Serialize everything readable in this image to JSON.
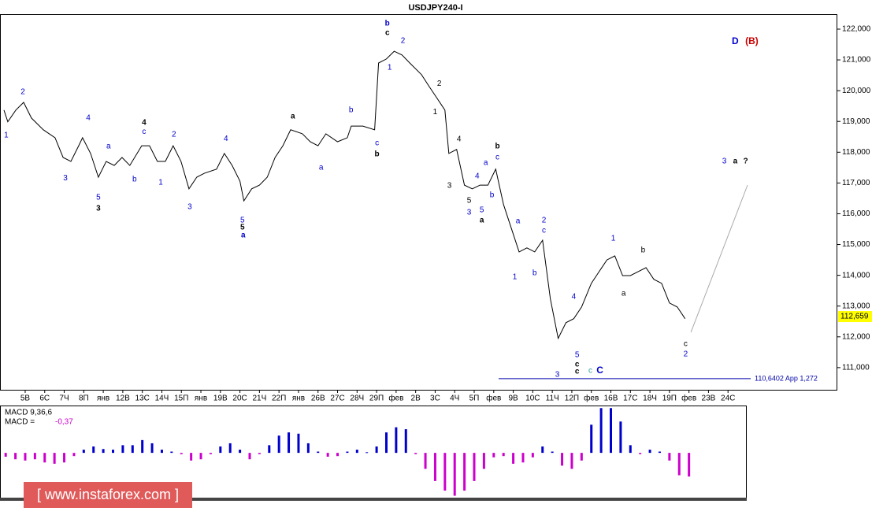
{
  "chart_data": [
    {
      "type": "line",
      "title": "USDJPY240-I",
      "color": "#000000",
      "x": [
        -1.09,
        -0.89,
        -0.48,
        -0.08,
        0.32,
        0.93,
        1.53,
        1.94,
        2.34,
        2.74,
        2.94,
        3.35,
        3.75,
        4.15,
        4.56,
        4.96,
        5.36,
        5.97,
        6.37,
        6.77,
        7.18,
        7.58,
        7.98,
        8.39,
        8.79,
        9.19,
        9.8,
        10.2,
        10.6,
        11.0,
        11.2,
        11.6,
        12.0,
        12.4,
        12.8,
        13.2,
        13.6,
        14.2,
        14.6,
        15.0,
        15.4,
        16.0,
        16.5,
        16.7,
        17.3,
        17.9,
        18.1,
        18.5,
        18.9,
        19.3,
        19.7,
        20.3,
        20.7,
        21.1,
        21.5,
        21.7,
        22.1,
        22.5,
        22.9,
        23.3,
        23.7,
        24.1,
        24.5,
        24.9,
        25.3,
        25.7,
        26.1,
        26.5,
        26.9,
        27.3,
        27.7,
        28.1,
        28.5,
        29.0,
        29.4,
        29.8,
        30.2,
        30.6,
        31.0,
        31.4,
        31.8,
        32.2,
        32.6,
        33.0,
        33.4,
        33.8
      ],
      "values": [
        119.37,
        118.99,
        119.37,
        119.62,
        119.11,
        118.73,
        118.47,
        117.83,
        117.7,
        118.21,
        118.47,
        117.96,
        117.19,
        117.7,
        117.57,
        117.83,
        117.57,
        118.21,
        118.21,
        117.7,
        117.7,
        118.21,
        117.7,
        116.81,
        117.19,
        117.32,
        117.45,
        117.96,
        117.57,
        117.06,
        116.42,
        116.81,
        116.93,
        117.19,
        117.83,
        118.21,
        118.73,
        118.6,
        118.34,
        118.21,
        118.6,
        118.34,
        118.47,
        118.85,
        118.85,
        118.73,
        120.9,
        121.03,
        121.28,
        121.16,
        120.9,
        120.52,
        120.13,
        119.75,
        119.37,
        117.96,
        118.09,
        116.93,
        116.81,
        116.93,
        116.93,
        117.45,
        116.3,
        115.53,
        114.76,
        114.89,
        114.76,
        115.14,
        113.23,
        111.95,
        112.46,
        112.59,
        112.97,
        113.74,
        114.12,
        114.5,
        114.63,
        113.99,
        113.99,
        114.12,
        114.25,
        113.87,
        113.74,
        113.1,
        112.97,
        112.59
      ],
      "xlim": [
        -1.29,
        41.6
      ],
      "ylim": [
        110.28,
        122.486
      ],
      "xticks": [
        {
          "value": 0,
          "label": "5В"
        },
        {
          "value": 1,
          "label": "6С"
        },
        {
          "value": 2,
          "label": "7Ч"
        },
        {
          "value": 3,
          "label": "8П"
        },
        {
          "value": 4,
          "label": "янв"
        },
        {
          "value": 5,
          "label": "12В"
        },
        {
          "value": 6,
          "label": "13С"
        },
        {
          "value": 7,
          "label": "14Ч"
        },
        {
          "value": 8,
          "label": "15П"
        },
        {
          "value": 9,
          "label": "янв"
        },
        {
          "value": 10,
          "label": "19В"
        },
        {
          "value": 11,
          "label": "20С"
        },
        {
          "value": 12,
          "label": "21Ч"
        },
        {
          "value": 13,
          "label": "22П"
        },
        {
          "value": 14,
          "label": "янв"
        },
        {
          "value": 15,
          "label": "26В"
        },
        {
          "value": 16,
          "label": "27С"
        },
        {
          "value": 17,
          "label": "28Ч"
        },
        {
          "value": 18,
          "label": "29П"
        },
        {
          "value": 19,
          "label": "фев"
        },
        {
          "value": 20,
          "label": "2В"
        },
        {
          "value": 21,
          "label": "3С"
        },
        {
          "value": 22,
          "label": "4Ч"
        },
        {
          "value": 23,
          "label": "5П"
        },
        {
          "value": 24,
          "label": "фев"
        },
        {
          "value": 25,
          "label": "9В"
        },
        {
          "value": 26,
          "label": "10С"
        },
        {
          "value": 27,
          "label": "11Ч"
        },
        {
          "value": 28,
          "label": "12П"
        },
        {
          "value": 29,
          "label": "фев"
        },
        {
          "value": 30,
          "label": "16В"
        },
        {
          "value": 31,
          "label": "17С"
        },
        {
          "value": 32,
          "label": "18Ч"
        },
        {
          "value": 33,
          "label": "19П"
        },
        {
          "value": 34,
          "label": "фев"
        },
        {
          "value": 35,
          "label": "23В"
        },
        {
          "value": 36,
          "label": "24С"
        }
      ],
      "yticks": [
        {
          "value": 111,
          "label": "111,000"
        },
        {
          "value": 112,
          "label": "112,000"
        },
        {
          "value": 113,
          "label": "113,000"
        },
        {
          "value": 114,
          "label": "114,000"
        },
        {
          "value": 115,
          "label": "115,000"
        },
        {
          "value": 116,
          "label": "116,000"
        },
        {
          "value": 117,
          "label": "117,000"
        },
        {
          "value": 118,
          "label": "118,000"
        },
        {
          "value": 119,
          "label": "119,000"
        },
        {
          "value": 120,
          "label": "120,000"
        },
        {
          "value": 121,
          "label": "121,000"
        },
        {
          "value": 122,
          "label": "122,000"
        }
      ],
      "last_price": {
        "value": 112.659,
        "label": "112,659"
      },
      "reference_line": {
        "value": 110.6402,
        "label": "110,6402 App 1,272",
        "color": "#0000aa"
      },
      "forecast": {
        "x": [
          34.1,
          37.0
        ],
        "values": [
          112.15,
          116.93
        ],
        "color": "#aaaaaa"
      },
      "annotations": [
        {
          "text": "1",
          "x": -0.97,
          "y": 118.55,
          "color": "#0000cc"
        },
        {
          "text": "2",
          "x": -0.12,
          "y": 119.95,
          "color": "#0000cc"
        },
        {
          "text": "3",
          "x": 2.06,
          "y": 117.16,
          "color": "#0000cc"
        },
        {
          "text": "4",
          "x": 3.23,
          "y": 119.11,
          "color": "#0000cc"
        },
        {
          "text": "5",
          "x": 3.75,
          "y": 116.53,
          "color": "#0000cc"
        },
        {
          "text": "3",
          "x": 3.75,
          "y": 116.17,
          "color": "#000000",
          "bold": true
        },
        {
          "text": "a",
          "x": 4.27,
          "y": 118.19,
          "color": "#0000cc"
        },
        {
          "text": "b",
          "x": 5.6,
          "y": 117.11,
          "color": "#0000cc"
        },
        {
          "text": "4",
          "x": 6.09,
          "y": 118.96,
          "color": "#000000",
          "bold": true
        },
        {
          "text": "c",
          "x": 6.09,
          "y": 118.67,
          "color": "#0000cc"
        },
        {
          "text": "1",
          "x": 6.94,
          "y": 117.01,
          "color": "#0000cc"
        },
        {
          "text": "2",
          "x": 7.62,
          "y": 118.57,
          "color": "#0000cc"
        },
        {
          "text": "3",
          "x": 8.43,
          "y": 116.22,
          "color": "#0000cc"
        },
        {
          "text": "4",
          "x": 10.28,
          "y": 118.44,
          "color": "#0000cc"
        },
        {
          "text": "5",
          "x": 11.13,
          "y": 115.78,
          "color": "#0000cc"
        },
        {
          "text": "5",
          "x": 11.13,
          "y": 115.55,
          "color": "#000000",
          "bold": true
        },
        {
          "text": "a",
          "x": 11.17,
          "y": 115.3,
          "color": "#0000cc",
          "bold": true
        },
        {
          "text": "a",
          "x": 13.71,
          "y": 119.16,
          "color": "#000000",
          "bold": true
        },
        {
          "text": "a",
          "x": 15.16,
          "y": 117.5,
          "color": "#0000cc"
        },
        {
          "text": "b",
          "x": 16.69,
          "y": 119.37,
          "color": "#0000cc"
        },
        {
          "text": "c",
          "x": 18.02,
          "y": 118.29,
          "color": "#0000cc"
        },
        {
          "text": "b",
          "x": 18.02,
          "y": 117.93,
          "color": "#000000",
          "bold": true
        },
        {
          "text": "b",
          "x": 18.55,
          "y": 122.18,
          "color": "#0000cc",
          "bold": true
        },
        {
          "text": "c",
          "x": 18.55,
          "y": 121.87,
          "color": "#000000",
          "bold": true
        },
        {
          "text": "1",
          "x": 18.67,
          "y": 120.75,
          "color": "#0000cc"
        },
        {
          "text": "2",
          "x": 19.35,
          "y": 121.62,
          "color": "#0000cc"
        },
        {
          "text": "1",
          "x": 21.0,
          "y": 119.31,
          "color": "#000000"
        },
        {
          "text": "2",
          "x": 21.21,
          "y": 120.23,
          "color": "#000000"
        },
        {
          "text": "3",
          "x": 21.73,
          "y": 116.91,
          "color": "#000000"
        },
        {
          "text": "4",
          "x": 22.22,
          "y": 118.42,
          "color": "#000000"
        },
        {
          "text": "5",
          "x": 22.74,
          "y": 116.42,
          "color": "#000000"
        },
        {
          "text": "3",
          "x": 22.74,
          "y": 116.04,
          "color": "#0000cc"
        },
        {
          "text": "4",
          "x": 23.15,
          "y": 117.22,
          "color": "#0000cc"
        },
        {
          "text": "5",
          "x": 23.39,
          "y": 116.12,
          "color": "#0000cc"
        },
        {
          "text": "a",
          "x": 23.39,
          "y": 115.78,
          "color": "#000000",
          "bold": true
        },
        {
          "text": "a",
          "x": 23.59,
          "y": 117.65,
          "color": "#0000cc"
        },
        {
          "text": "b",
          "x": 23.91,
          "y": 116.6,
          "color": "#0000cc"
        },
        {
          "text": "c",
          "x": 24.19,
          "y": 117.83,
          "color": "#0000cc"
        },
        {
          "text": "b",
          "x": 24.19,
          "y": 118.19,
          "color": "#000000",
          "bold": true
        },
        {
          "text": "1",
          "x": 25.08,
          "y": 113.94,
          "color": "#0000cc"
        },
        {
          "text": "a",
          "x": 25.24,
          "y": 115.76,
          "color": "#0000cc"
        },
        {
          "text": "b",
          "x": 26.09,
          "y": 114.07,
          "color": "#0000cc"
        },
        {
          "text": "2",
          "x": 26.57,
          "y": 115.78,
          "color": "#0000cc"
        },
        {
          "text": "c",
          "x": 26.57,
          "y": 115.45,
          "color": "#0000cc"
        },
        {
          "text": "3",
          "x": 27.26,
          "y": 110.77,
          "color": "#0000cc"
        },
        {
          "text": "4",
          "x": 28.1,
          "y": 113.3,
          "color": "#0000cc"
        },
        {
          "text": "5",
          "x": 28.27,
          "y": 111.41,
          "color": "#0000cc"
        },
        {
          "text": "c",
          "x": 28.27,
          "y": 111.1,
          "color": "#000000",
          "bold": true
        },
        {
          "text": "c",
          "x": 28.27,
          "y": 110.87,
          "color": "#000000",
          "bold": true
        },
        {
          "text": "c",
          "x": 28.95,
          "y": 110.9,
          "color": "#2a9d9d"
        },
        {
          "text": "C",
          "x": 29.44,
          "y": 110.9,
          "color": "#0000cc",
          "bold": true
        },
        {
          "text": "1",
          "x": 30.12,
          "y": 115.2,
          "color": "#0000cc"
        },
        {
          "text": "a",
          "x": 30.65,
          "y": 113.4,
          "color": "#000000"
        },
        {
          "text": "b",
          "x": 31.65,
          "y": 114.81,
          "color": "#000000"
        },
        {
          "text": "c",
          "x": 33.83,
          "y": 111.77,
          "color": "#000000"
        },
        {
          "text": "2",
          "x": 33.83,
          "y": 111.43,
          "color": "#0000cc"
        },
        {
          "text": "3",
          "x": 35.81,
          "y": 117.7,
          "color": "#0000cc"
        },
        {
          "text": "a",
          "x": 36.37,
          "y": 117.7,
          "color": "#000000",
          "bold": true
        },
        {
          "text": "?",
          "x": 36.9,
          "y": 117.7,
          "color": "#000000",
          "bold": true
        },
        {
          "text": "D",
          "x": 36.37,
          "y": 121.59,
          "color": "#0000cc",
          "bold": true
        },
        {
          "text": "(B)",
          "x": 37.22,
          "y": 121.59,
          "color": "#cc0000",
          "bold": true
        }
      ]
    },
    {
      "type": "bar",
      "title": "MACD 9,36,6",
      "value_text": "MACD =",
      "current": {
        "value": -0.37,
        "label": "-0,37"
      },
      "positive_color": "#0000cc",
      "negative_color": "#cc00cc",
      "x": [
        -1,
        -0.5,
        0,
        0.5,
        1,
        1.5,
        2,
        2.5,
        3,
        3.5,
        4,
        4.5,
        5,
        5.5,
        6,
        6.5,
        7,
        7.5,
        8,
        8.5,
        9,
        9.5,
        10,
        10.5,
        11,
        11.5,
        12,
        12.5,
        13,
        13.5,
        14,
        14.5,
        15,
        15.5,
        16,
        16.5,
        17,
        17.5,
        18,
        18.5,
        19,
        19.5,
        20,
        20.5,
        21,
        21.5,
        22,
        22.5,
        23,
        23.5,
        24,
        24.5,
        25,
        25.5,
        26,
        26.5,
        27,
        27.5,
        28,
        28.5,
        29,
        29.5,
        30,
        30.5,
        31,
        31.5,
        32,
        32.5,
        33,
        33.5,
        34
      ],
      "values": [
        -0.06,
        -0.1,
        -0.12,
        -0.1,
        -0.15,
        -0.17,
        -0.15,
        -0.05,
        0.05,
        0.1,
        0.06,
        0.05,
        0.12,
        0.12,
        0.2,
        0.15,
        0.05,
        0.02,
        -0.02,
        -0.12,
        -0.1,
        -0.02,
        0.1,
        0.15,
        0.05,
        -0.1,
        -0.02,
        0.12,
        0.27,
        0.32,
        0.3,
        0.15,
        0.02,
        -0.06,
        -0.05,
        0.02,
        0.05,
        0.01,
        0.1,
        0.32,
        0.4,
        0.37,
        -0.02,
        -0.25,
        -0.44,
        -0.59,
        -0.67,
        -0.59,
        -0.44,
        -0.25,
        -0.07,
        -0.05,
        -0.17,
        -0.15,
        -0.07,
        0.1,
        0.02,
        -0.2,
        -0.25,
        -0.12,
        0.44,
        0.7,
        0.7,
        0.49,
        0.12,
        -0.02,
        0.05,
        0.02,
        -0.12,
        -0.35,
        -0.37
      ],
      "xlim": [
        -1.29,
        41.6
      ],
      "ylim": [
        -0.7,
        0.74
      ]
    }
  ],
  "watermark": "[ www.instaforex.com ]"
}
